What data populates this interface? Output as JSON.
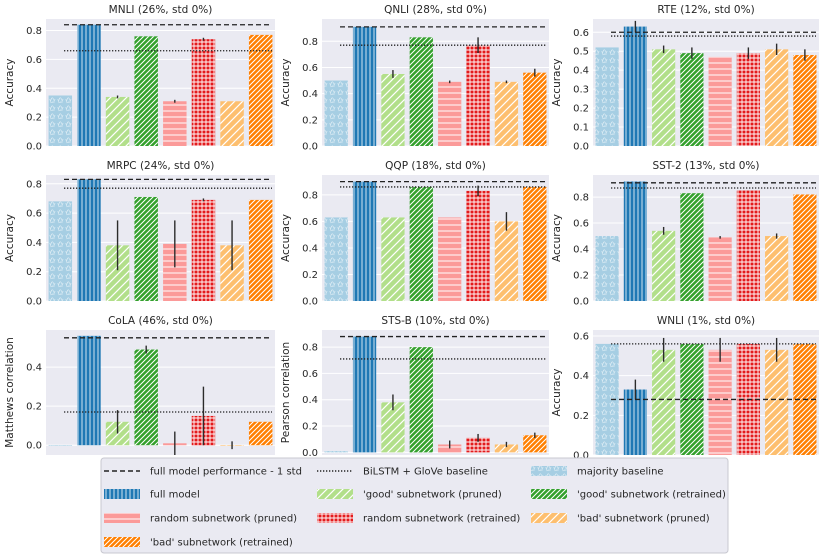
{
  "chart_data": {
    "type": "bar",
    "series_style": [
      {
        "name": "majority baseline",
        "color": "#a6cee3",
        "pattern": "stars"
      },
      {
        "name": "full model",
        "color": "#1f78b4",
        "pattern": "vlines"
      },
      {
        "name": "'good' subnetwork (pruned)",
        "color": "#b2df8a",
        "pattern": "diag"
      },
      {
        "name": "'good' subnetwork (retrained)",
        "color": "#33a02c",
        "pattern": "diag-dense"
      },
      {
        "name": "random subnetwork (pruned)",
        "color": "#fb9a99",
        "pattern": "hlines"
      },
      {
        "name": "random subnetwork (retrained)",
        "color": "#e31a1c",
        "pattern": "grid"
      },
      {
        "name": "'bad' subnetwork (pruned)",
        "color": "#fdbf6f",
        "pattern": "diag"
      },
      {
        "name": "'bad' subnetwork (retrained)",
        "color": "#ff7f00",
        "pattern": "diag-dense"
      }
    ],
    "panels": [
      {
        "title": "MNLI (26%, std 0%)",
        "ylabel": "Accuracy",
        "ylim": [
          0,
          0.88
        ],
        "yticks": [
          0.0,
          0.2,
          0.4,
          0.6,
          0.8
        ],
        "tick_labels": [
          "0.0",
          "0.2",
          "0.4",
          "0.6",
          "0.8"
        ],
        "values": [
          0.35,
          0.84,
          0.34,
          0.76,
          0.31,
          0.74,
          0.31,
          0.77
        ],
        "errors": [
          0,
          0,
          0.01,
          0,
          0.01,
          0.01,
          0,
          0
        ],
        "full_minus_std": 0.84,
        "baseline": 0.66
      },
      {
        "title": "QNLI (28%, std 0%)",
        "ylabel": "Accuracy",
        "ylim": [
          0,
          0.97
        ],
        "yticks": [
          0.0,
          0.2,
          0.4,
          0.6,
          0.8
        ],
        "tick_labels": [
          "0.0",
          "0.2",
          "0.4",
          "0.6",
          "0.8"
        ],
        "values": [
          0.5,
          0.91,
          0.55,
          0.83,
          0.49,
          0.77,
          0.49,
          0.56
        ],
        "errors": [
          0,
          0,
          0.03,
          0,
          0.01,
          0.06,
          0.01,
          0.03
        ],
        "full_minus_std": 0.91,
        "baseline": 0.77
      },
      {
        "title": "RTE (12%, std 0%)",
        "ylabel": "Accuracy",
        "ylim": [
          0,
          0.67
        ],
        "yticks": [
          0.0,
          0.1,
          0.2,
          0.3,
          0.4,
          0.5,
          0.6
        ],
        "tick_labels": [
          "0.0",
          "0.1",
          "0.2",
          "0.3",
          "0.4",
          "0.5",
          "0.6"
        ],
        "values": [
          0.52,
          0.63,
          0.51,
          0.49,
          0.47,
          0.49,
          0.51,
          0.48
        ],
        "errors": [
          0,
          0.03,
          0.02,
          0.03,
          0,
          0.03,
          0.03,
          0.03
        ],
        "full_minus_std": 0.6,
        "baseline": 0.58
      },
      {
        "title": "MRPC (24%, std 0%)",
        "ylabel": "Accuracy",
        "ylim": [
          0,
          0.86
        ],
        "yticks": [
          0.0,
          0.2,
          0.4,
          0.6,
          0.8
        ],
        "tick_labels": [
          "0.0",
          "0.2",
          "0.4",
          "0.6",
          "0.8"
        ],
        "values": [
          0.68,
          0.83,
          0.38,
          0.71,
          0.39,
          0.69,
          0.38,
          0.69
        ],
        "errors": [
          0,
          0,
          0.17,
          0,
          0.16,
          0.01,
          0.17,
          0
        ],
        "full_minus_std": 0.83,
        "baseline": 0.77
      },
      {
        "title": "QQP (18%, std 0%)",
        "ylabel": "Accuracy",
        "ylim": [
          0,
          0.95
        ],
        "yticks": [
          0.0,
          0.2,
          0.4,
          0.6,
          0.8
        ],
        "tick_labels": [
          "0.0",
          "0.2",
          "0.4",
          "0.6",
          "0.8"
        ],
        "values": [
          0.63,
          0.9,
          0.63,
          0.86,
          0.63,
          0.83,
          0.6,
          0.86
        ],
        "errors": [
          0,
          0,
          0,
          0,
          0,
          0.04,
          0.07,
          0
        ],
        "full_minus_std": 0.9,
        "baseline": 0.86
      },
      {
        "title": "SST-2 (13%, std 0%)",
        "ylabel": "Accuracy",
        "ylim": [
          0,
          0.97
        ],
        "yticks": [
          0.0,
          0.2,
          0.4,
          0.6,
          0.8
        ],
        "tick_labels": [
          "0.0",
          "0.2",
          "0.4",
          "0.6",
          "0.8"
        ],
        "values": [
          0.5,
          0.92,
          0.54,
          0.83,
          0.49,
          0.85,
          0.5,
          0.82
        ],
        "errors": [
          0,
          0,
          0.03,
          0,
          0.01,
          0,
          0.02,
          0
        ],
        "full_minus_std": 0.91,
        "baseline": 0.87
      },
      {
        "title": "CoLA (46%, std 0%)",
        "ylabel": "Matthews correlation",
        "ylim": [
          -0.05,
          0.59
        ],
        "yticks": [
          0.0,
          0.2,
          0.4
        ],
        "tick_labels": [
          "0.0",
          "0.2",
          "0.4"
        ],
        "values": [
          0.0,
          0.56,
          0.12,
          0.49,
          0.01,
          0.15,
          0.0,
          0.12
        ],
        "errors": [
          0,
          0,
          0.06,
          0.02,
          0.06,
          0.15,
          0.02,
          0
        ],
        "full_minus_std": 0.55,
        "baseline": 0.17
      },
      {
        "title": "STS-B (10%, std 0%)",
        "ylabel": "Pearson correlation",
        "ylim": [
          -0.02,
          0.93
        ],
        "yticks": [
          0.0,
          0.2,
          0.4,
          0.6,
          0.8
        ],
        "tick_labels": [
          "0.0",
          "0.2",
          "0.4",
          "0.6",
          "0.8"
        ],
        "values": [
          0.01,
          0.88,
          0.38,
          0.8,
          0.06,
          0.11,
          0.06,
          0.13
        ],
        "errors": [
          0,
          0,
          0.06,
          0,
          0.03,
          0.03,
          0.02,
          0.02
        ],
        "full_minus_std": 0.88,
        "baseline": 0.71
      },
      {
        "title": "WNLI (1%, std 0%)",
        "ylabel": "Accuracy",
        "ylim": [
          0,
          0.63
        ],
        "yticks": [
          0.0,
          0.2,
          0.4,
          0.6
        ],
        "tick_labels": [
          "0.0",
          "0.2",
          "0.4",
          "0.6"
        ],
        "values": [
          0.56,
          0.33,
          0.53,
          0.56,
          0.53,
          0.56,
          0.53,
          0.56
        ],
        "errors": [
          0,
          0.05,
          0.06,
          0,
          0.06,
          0,
          0.06,
          0
        ],
        "full_minus_std": 0.28,
        "baseline": 0.56
      }
    ],
    "legend": {
      "position": "bottom-center",
      "entries": [
        {
          "label": "full model performance - 1 std",
          "kind": "dashed"
        },
        {
          "label": "BiLSTM + GloVe baseline",
          "kind": "dotted"
        },
        {
          "label": "majority baseline",
          "kind": "bar",
          "series": 0
        },
        {
          "label": "full model",
          "kind": "bar",
          "series": 1
        },
        {
          "label": "'good' subnetwork (pruned)",
          "kind": "bar",
          "series": 2
        },
        {
          "label": "'good' subnetwork (retrained)",
          "kind": "bar",
          "series": 3
        },
        {
          "label": "random subnetwork (pruned)",
          "kind": "bar",
          "series": 4
        },
        {
          "label": "random subnetwork (retrained)",
          "kind": "bar",
          "series": 5
        },
        {
          "label": "'bad' subnetwork (pruned)",
          "kind": "bar",
          "series": 6
        },
        {
          "label": "'bad' subnetwork (retrained)",
          "kind": "bar",
          "series": 7
        }
      ]
    }
  }
}
